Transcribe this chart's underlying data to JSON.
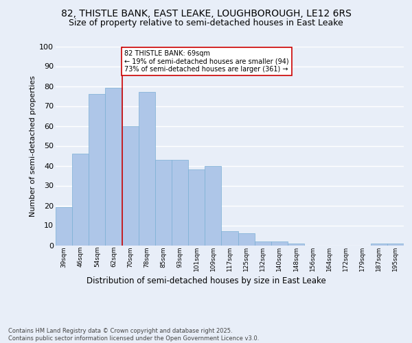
{
  "title1": "82, THISTLE BANK, EAST LEAKE, LOUGHBOROUGH, LE12 6RS",
  "title2": "Size of property relative to semi-detached houses in East Leake",
  "xlabel": "Distribution of semi-detached houses by size in East Leake",
  "ylabel": "Number of semi-detached properties",
  "categories": [
    "39sqm",
    "46sqm",
    "54sqm",
    "62sqm",
    "70sqm",
    "78sqm",
    "85sqm",
    "93sqm",
    "101sqm",
    "109sqm",
    "117sqm",
    "125sqm",
    "132sqm",
    "140sqm",
    "148sqm",
    "156sqm",
    "164sqm",
    "172sqm",
    "179sqm",
    "187sqm",
    "195sqm"
  ],
  "values": [
    19,
    46,
    76,
    79,
    60,
    77,
    43,
    43,
    38,
    40,
    7,
    6,
    2,
    2,
    1,
    0,
    0,
    0,
    0,
    1,
    1
  ],
  "bar_color": "#aec6e8",
  "bar_edge_color": "#7aafd4",
  "annotation_text": "82 THISTLE BANK: 69sqm\n← 19% of semi-detached houses are smaller (94)\n73% of semi-detached houses are larger (361) →",
  "footer": "Contains HM Land Registry data © Crown copyright and database right 2025.\nContains public sector information licensed under the Open Government Licence v3.0.",
  "ylim": [
    0,
    100
  ],
  "yticks": [
    0,
    10,
    20,
    30,
    40,
    50,
    60,
    70,
    80,
    90,
    100
  ],
  "background_color": "#e8eef8",
  "grid_color": "#ffffff",
  "annotation_box_color": "#ffffff",
  "annotation_box_edge": "#cc0000",
  "vline_color": "#cc0000",
  "vline_x_index": 4,
  "title_fontsize": 10,
  "subtitle_fontsize": 9
}
